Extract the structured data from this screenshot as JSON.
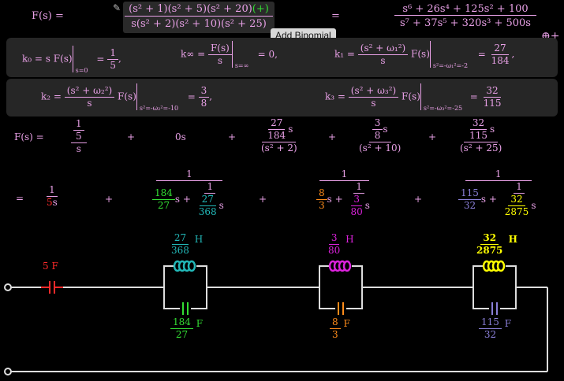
{
  "header": {
    "F_label": "F(s) =",
    "pencil_icon": "pencil-icon",
    "num_expr": "(s² + 1)(s² + 5)(s² + 20)",
    "plus_tag": "(+)",
    "den_expr": "s(s² + 2)(s² + 10)(s² + 25)",
    "equals": "=",
    "rhs_num": "s⁶ + 26s⁴ + 125s² + 100",
    "rhs_den": "s⁷ + 37s⁵ + 320s³ + 500s",
    "tooltip": "Add Binomial",
    "add_button": "⊕+"
  },
  "coefficients": {
    "k0": {
      "lhs": "k₀ = s F(s)",
      "sub": "s=0",
      "num": "1",
      "den": "5",
      "tail": ","
    },
    "kinf": {
      "lhs": "k∞ =",
      "frac_num": "F(s)",
      "frac_den": "s",
      "sub": "s=∞",
      "rhs": "= 0,"
    },
    "k1": {
      "lhs": "k₁ =",
      "frac_num": "(s² + ω₁²)",
      "frac_den": "s",
      "mid": "F(s)",
      "sub": "s²=-ω₁²=-2",
      "num": "27",
      "den": "184",
      "tail": ","
    },
    "k2": {
      "lhs": "k₂ =",
      "frac_num": "(s² + ω₂²)",
      "frac_den": "s",
      "mid": "F(s)",
      "sub": "s²=-ω₂²=-10",
      "num": "3",
      "den": "8",
      "tail": ","
    },
    "k3": {
      "lhs": "k₃ =",
      "frac_num": "(s² + ω₃²)",
      "frac_den": "s",
      "mid": "F(s)",
      "sub": "s²=-ω₃²=-25",
      "num": "32",
      "den": "115"
    }
  },
  "expansion": {
    "F_label": "F(s) =",
    "t0_inner_num": "1",
    "t0_inner_den": "5",
    "t0_den": "s",
    "plus": "+",
    "t1": "0s",
    "t2_num": "27",
    "t2_den": "184",
    "t2_s": "s",
    "t2_bottom": "(s² + 2)",
    "t3_num": "3",
    "t3_den": "8",
    "t3_s": "s",
    "t3_bottom": "(s² + 10)",
    "t4_num": "32",
    "t4_den": "115",
    "t4_s": "s",
    "t4_bottom": "(s² + 25)"
  },
  "foster": {
    "equals": "=",
    "c0_num": "1",
    "c0_den": "5",
    "c0_s": "s",
    "plus": "+",
    "one": "1",
    "a_num": "184",
    "a_den": "27",
    "a_s": "s +",
    "a_inner_num": "1",
    "a_inner_n": "27",
    "a_inner_d": "368",
    "a_inner_s": "s",
    "b_num": "8",
    "b_den": "3",
    "b_s": "s +",
    "b_inner_num": "1",
    "b_inner_n": "3",
    "b_inner_d": "80",
    "b_inner_s": "s",
    "c_num": "115",
    "c_den": "32",
    "c_s": "s +",
    "c_inner_num": "1",
    "c_inner_n": "32",
    "c_inner_d": "2875",
    "c_inner_s": "s"
  },
  "circuit": {
    "cap0": {
      "value": "5",
      "unit": "F"
    },
    "L1": {
      "num": "27",
      "den": "368",
      "unit": "H"
    },
    "C1": {
      "num": "184",
      "den": "27",
      "unit": "F"
    },
    "L2": {
      "num": "3",
      "den": "80",
      "unit": "H"
    },
    "C2": {
      "num": "8",
      "den": "3",
      "unit": "F"
    },
    "L3": {
      "num": "32",
      "den": "2875",
      "unit": "H"
    },
    "C3": {
      "num": "115",
      "den": "32",
      "unit": "F"
    }
  },
  "colors": {
    "text": "#e8a0e6",
    "red": "#ff2a2a",
    "green": "#33dd33",
    "teal": "#22b8b8",
    "magenta": "#dd22dd",
    "orange": "#ff8c1a",
    "yellow": "#ffff00",
    "lavender": "#8a7fd8"
  }
}
